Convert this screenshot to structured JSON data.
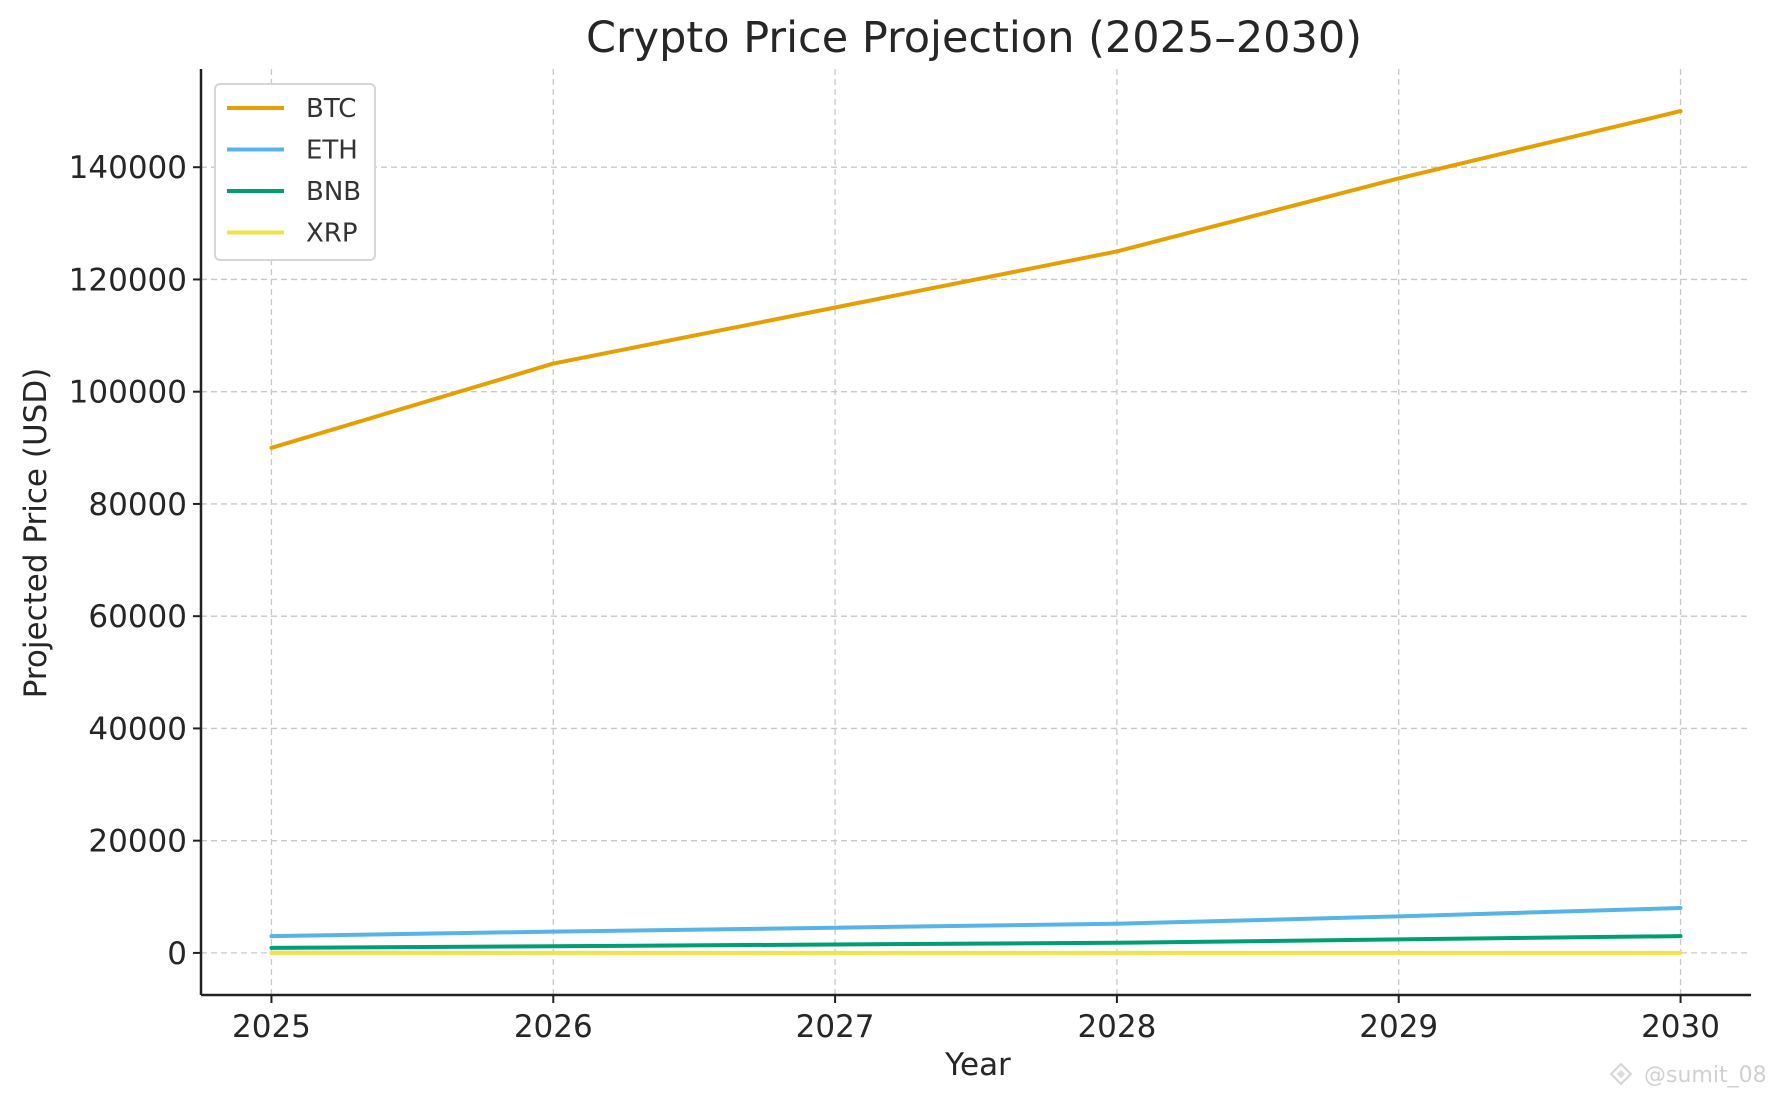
{
  "chart_data": {
    "type": "line",
    "title": "Crypto Price Projection (2025–2030)",
    "xlabel": "Year",
    "ylabel": "Projected Price (USD)",
    "x": [
      2025,
      2026,
      2027,
      2028,
      2029,
      2030
    ],
    "xticks": [
      "2025",
      "2026",
      "2027",
      "2028",
      "2029",
      "2030"
    ],
    "yticks": [
      "0",
      "20000",
      "40000",
      "60000",
      "80000",
      "100000",
      "120000",
      "140000"
    ],
    "ytick_values": [
      0,
      20000,
      40000,
      60000,
      80000,
      100000,
      120000,
      140000
    ],
    "xlim": [
      2024.75,
      2030.25
    ],
    "ylim": [
      -7500,
      157500
    ],
    "grid": true,
    "legend_position": "top-left",
    "series": [
      {
        "name": "BTC",
        "color": "#E69F00",
        "values": [
          90000,
          105000,
          115000,
          125000,
          138000,
          150000
        ]
      },
      {
        "name": "ETH",
        "color": "#56B4E9",
        "values": [
          3000,
          3800,
          4500,
          5200,
          6500,
          8000
        ]
      },
      {
        "name": "BNB",
        "color": "#009E73",
        "values": [
          900,
          1200,
          1500,
          1800,
          2400,
          3000
        ]
      },
      {
        "name": "XRP",
        "color": "#F0E442",
        "values": [
          0.6,
          0.8,
          1.0,
          1.2,
          1.5,
          1.8
        ]
      }
    ]
  },
  "watermark": {
    "text": "@sumit_08",
    "icon": "diamond-logo-icon"
  }
}
